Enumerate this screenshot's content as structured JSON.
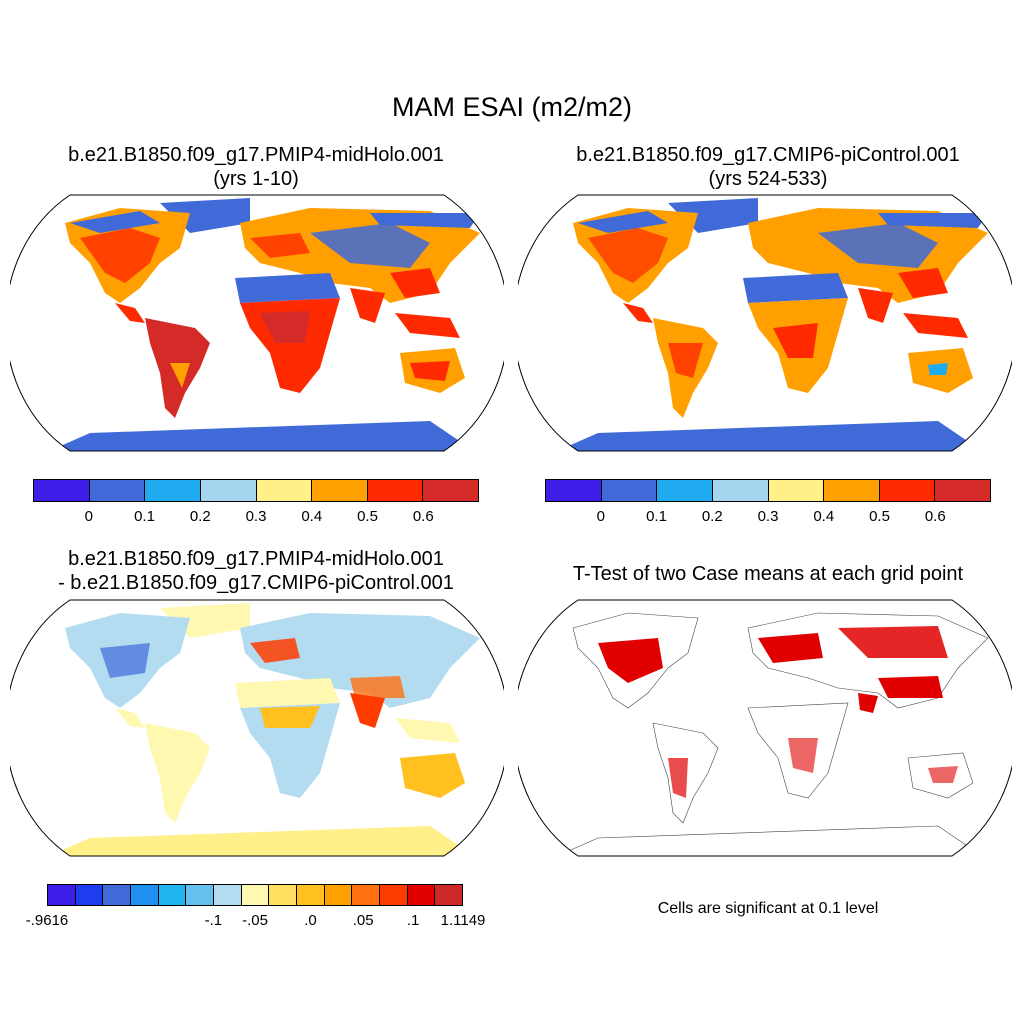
{
  "figure": {
    "title": "MAM ESAI (m2/m2)"
  },
  "panels": [
    {
      "id": "midholo",
      "title_line1": "b.e21.B1850.f09_g17.PMIP4-midHolo.001",
      "title_line2": "(yrs 1-10)",
      "description": "Field map, mostly high values"
    },
    {
      "id": "picontrol",
      "title_line1": "b.e21.B1850.f09_g17.CMIP6-piControl.001",
      "title_line2": "(yrs 524-533)"
    },
    {
      "id": "difference",
      "title_line1": "b.e21.B1850.f09_g17.PMIP4-midHolo.001",
      "title_line2": "- b.e21.B1850.f09_g17.CMIP6-piControl.001"
    },
    {
      "id": "ttest",
      "title_line1": "T-Test of two Case means at each grid point",
      "note": "Cells are significant at 0.1 level"
    }
  ],
  "colorbar_field": {
    "colors": [
      "#3c1ee8",
      "#3f6ad8",
      "#20aaf0",
      "#a6d5f0",
      "#fff08a",
      "#ffa000",
      "#ff2a00",
      "#d42a28"
    ],
    "ticks": [
      "0",
      "0.1",
      "0.2",
      "0.3",
      "0.4",
      "0.5",
      "0.6"
    ]
  },
  "colorbar_diff": {
    "colors": [
      "#3c1ee8",
      "#1e3cf0",
      "#3f6ad8",
      "#2090f0",
      "#20b4f0",
      "#64c0ec",
      "#b4dcf0",
      "#fff8b0",
      "#ffe060",
      "#ffc020",
      "#ffa000",
      "#ff7010",
      "#ff3c00",
      "#e00000",
      "#cc2828"
    ],
    "ticks": [
      "-.9616",
      "-.1",
      "-.05",
      ".0",
      ".05",
      ".1",
      "1.1149"
    ]
  },
  "colors": {
    "land_field": "#ffa000",
    "land_field_hot": "#ff2a00",
    "land_field_cool": "#3f6ad8",
    "land_diff": "#fff08a",
    "significant": "#e00000"
  }
}
